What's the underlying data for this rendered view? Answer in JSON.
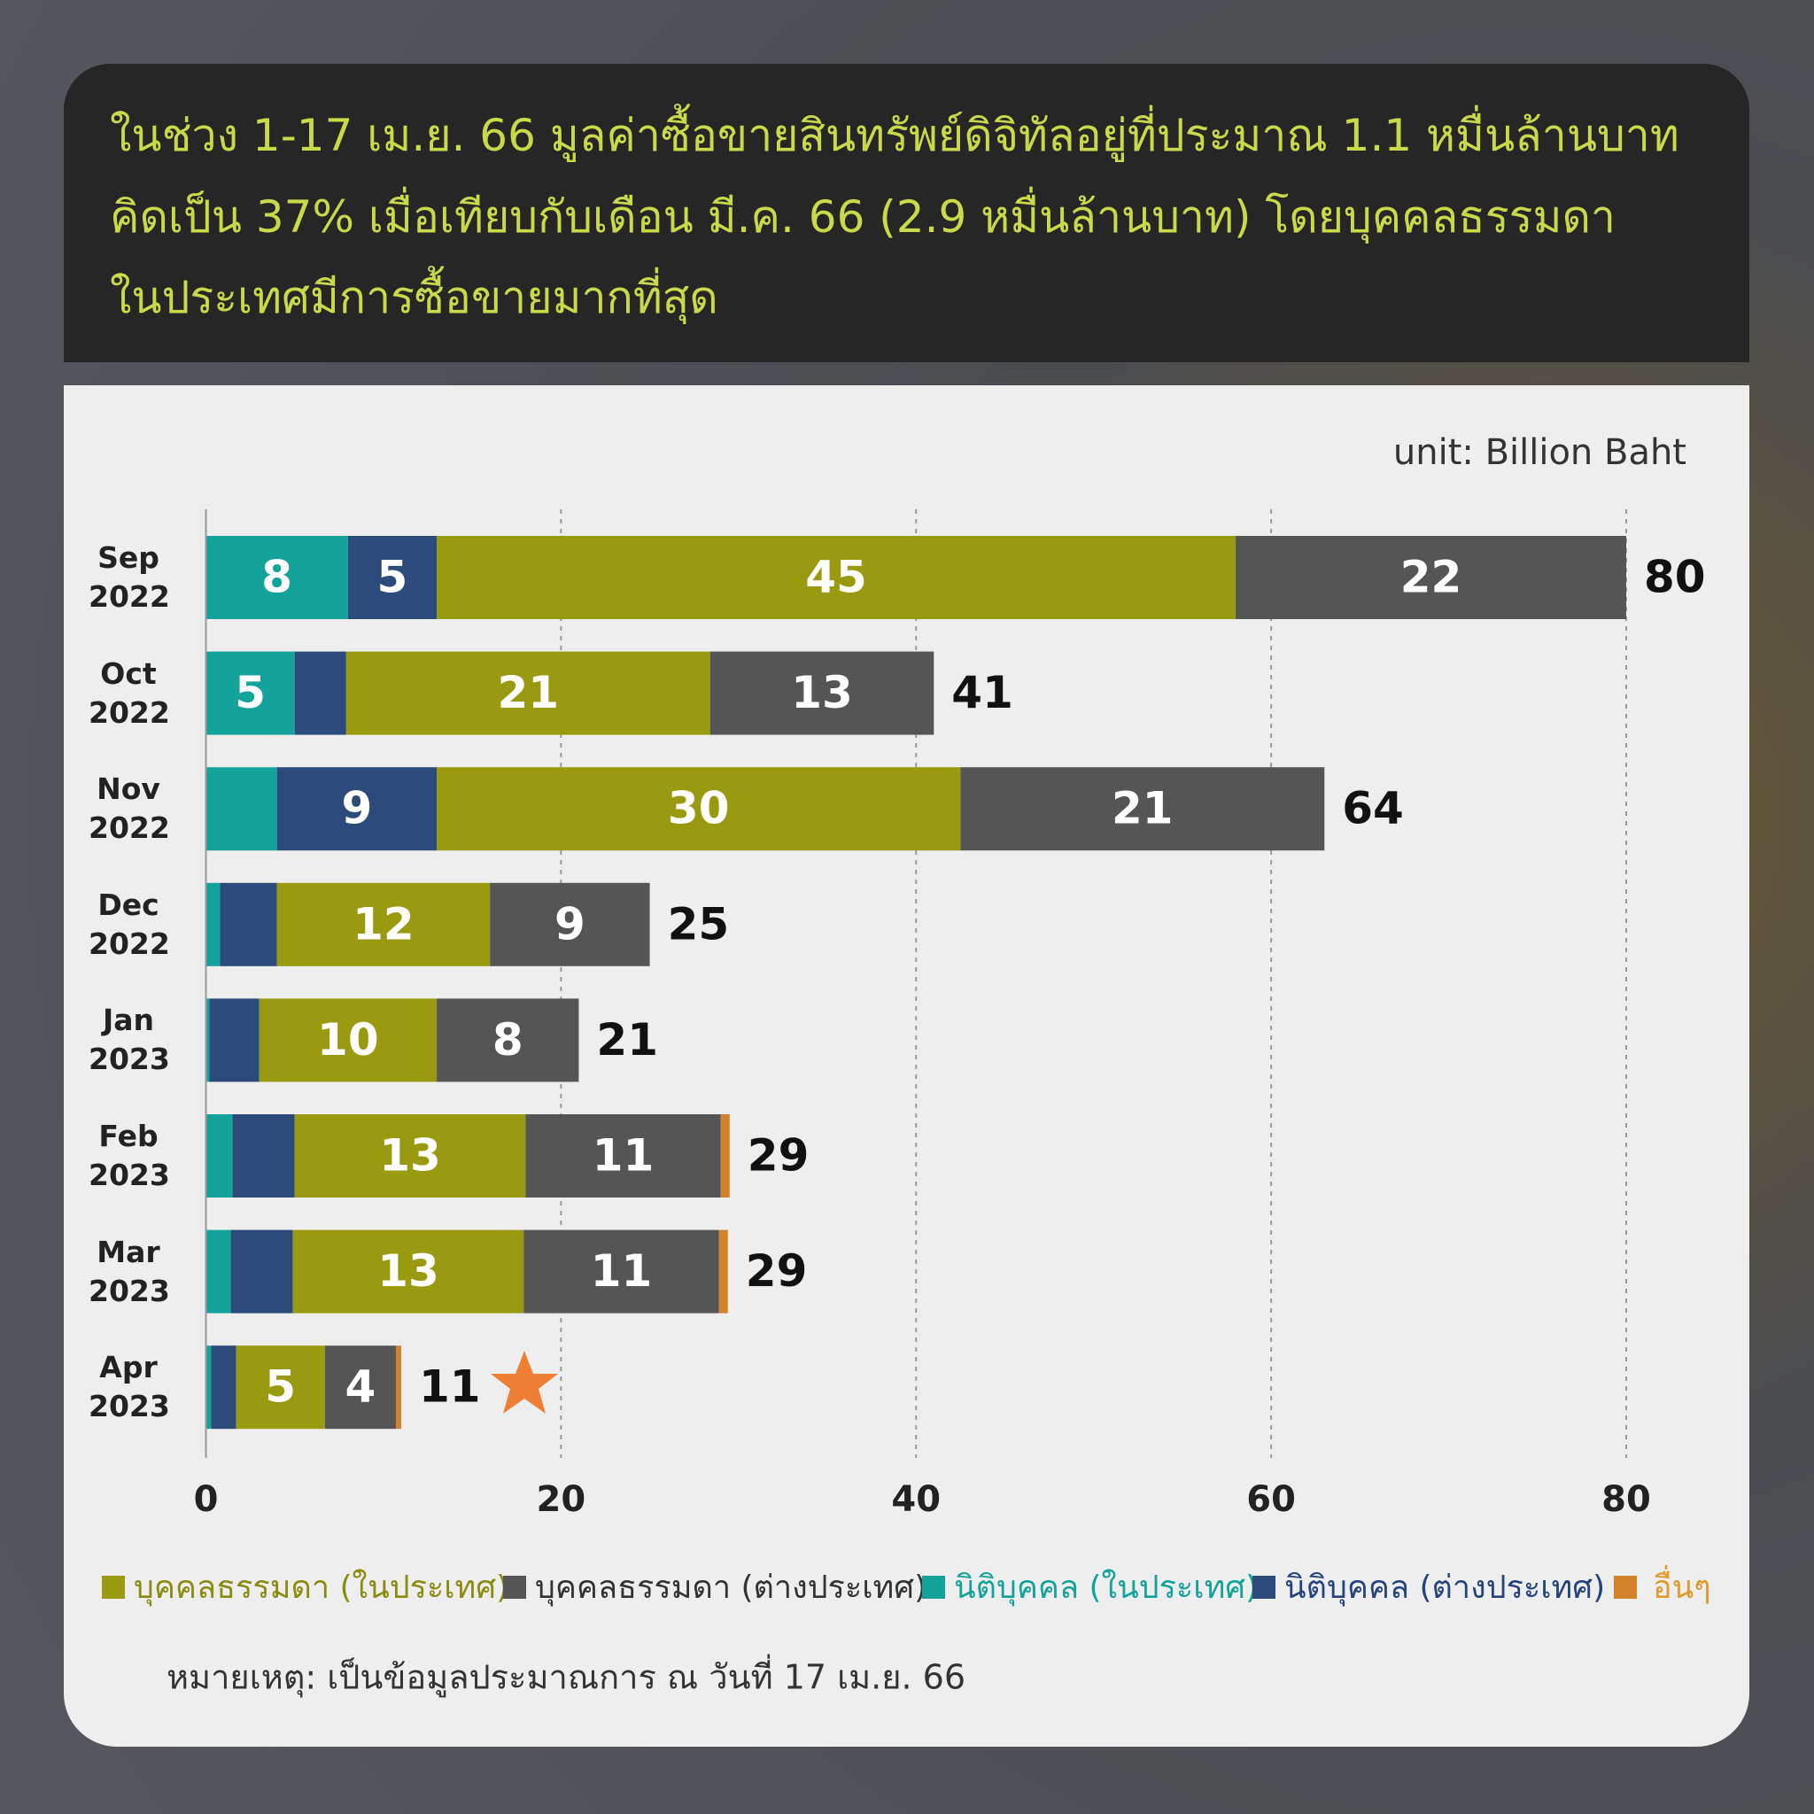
{
  "chart_data": {
    "type": "stacked-bar-horizontal",
    "title_lines": [
      "ในช่วง 1-17 เม.ย. 66 มูลค่าซื้อขายสินทรัพย์ดิจิทัลอยู่ที่ประมาณ 1.1 หมื่นล้านบาท",
      "คิดเป็น 37% เมื่อเทียบกับเดือน มี.ค. 66 (2.9 หมื่นล้านบาท) โดยบุคคลธรรมดา",
      "ในประเทศมีการซื้อขายมากที่สุด"
    ],
    "unit_label": "unit: Billion Baht",
    "note": "หมายเหตุ: เป็นข้อมูลประมาณการ ณ วันที่ 17 เม.ย. 66",
    "categories": [
      "Sep 2022",
      "Oct 2022",
      "Nov 2022",
      "Dec 2022",
      "Jan 2023",
      "Feb 2023",
      "Mar 2023",
      "Apr 2023"
    ],
    "series": [
      {
        "name": "นิติบุคคล (ในประเทศ)",
        "color": "#13a39a",
        "text_color": "#13a39a",
        "values": [
          8,
          5,
          4,
          0.8,
          0.2,
          1.5,
          1.4,
          0.3
        ],
        "value_labels": [
          "8",
          "5",
          null,
          null,
          null,
          null,
          null,
          null
        ]
      },
      {
        "name": "นิติบุคคล (ต่างประเทศ)",
        "color": "#2c4a7a",
        "text_color": "#24447e",
        "values": [
          5,
          2.9,
          9,
          3.2,
          2.8,
          3.5,
          3.5,
          1.4
        ],
        "value_labels": [
          "5",
          null,
          "9",
          null,
          null,
          null,
          null,
          null
        ]
      },
      {
        "name": "บุคคลธรรมดา (ในประเทศ)",
        "color": "#999a10",
        "text_color": "#8a8c10",
        "values": [
          45,
          20.5,
          29.5,
          12,
          10,
          13,
          13,
          5
        ],
        "value_labels": [
          "45",
          "21",
          "30",
          "12",
          "10",
          "13",
          "13",
          "5"
        ]
      },
      {
        "name": "บุคคลธรรมดา (ต่างประเทศ)",
        "color": "#555555",
        "text_color": "#333333",
        "values": [
          22,
          12.6,
          20.5,
          9,
          8,
          11,
          11,
          4
        ],
        "value_labels": [
          "22",
          "13",
          "21",
          "9",
          "8",
          "11",
          "11",
          "4"
        ]
      },
      {
        "name": "อื่นๆ",
        "color": "#d4822a",
        "text_color": "#e09a2a",
        "values": [
          0,
          0,
          0,
          0,
          0,
          0.5,
          0.5,
          0.3
        ],
        "value_labels": [
          null,
          null,
          null,
          null,
          null,
          null,
          null,
          null
        ]
      }
    ],
    "totals": [
      80,
      41,
      64,
      25,
      21,
      29,
      29,
      11
    ],
    "xlim": [
      0,
      80
    ],
    "xticks": [
      0,
      20,
      40,
      60,
      80
    ],
    "grid": true
  }
}
